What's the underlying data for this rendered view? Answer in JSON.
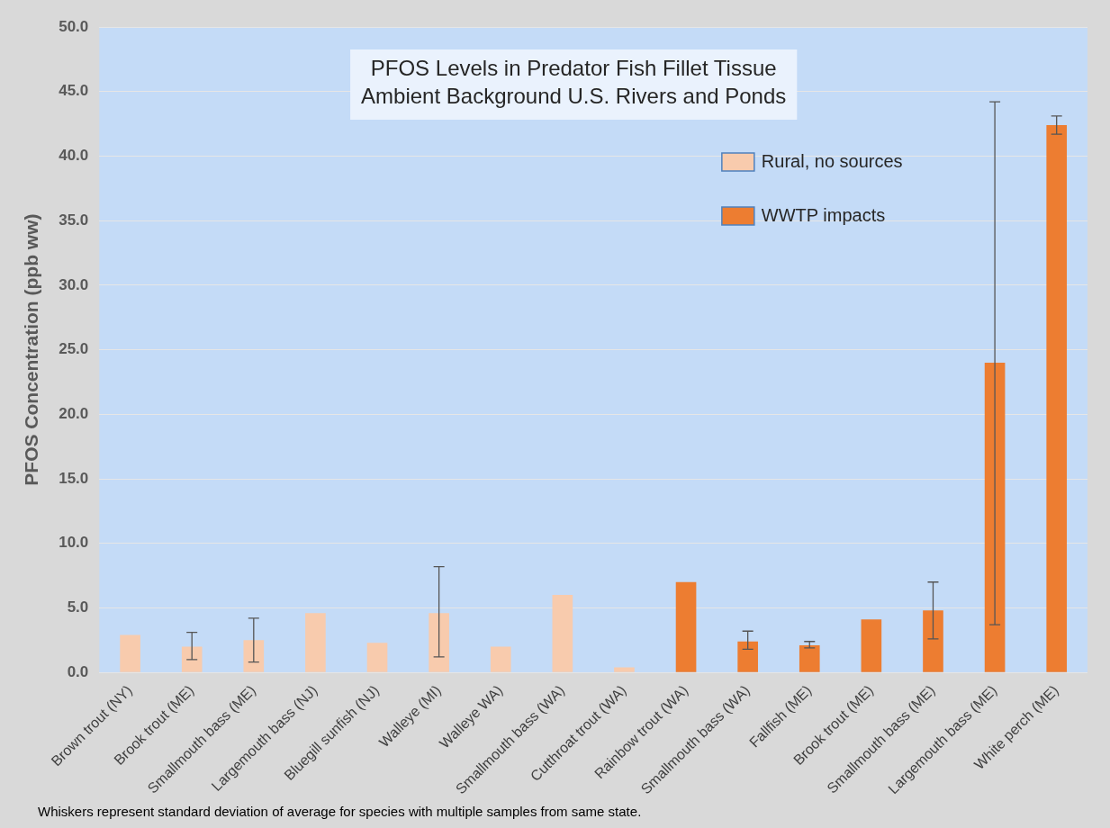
{
  "chart_data": {
    "type": "bar",
    "title": "PFOS Levels in Predator Fish Fillet Tissue",
    "subtitle": "Ambient Background U.S. Rivers and Ponds",
    "ylabel": "PFOS Concentration (ppb ww)",
    "categories": [
      "Brown trout (NY)",
      "Brook trout (ME)",
      "Smallmouth bass (ME)",
      "Largemouth bass (NJ)",
      "Bluegill sunfish (NJ)",
      "Walleye (MI)",
      "Walleye WA)",
      "Smallmouth bass (WA)",
      "Cutthroat trout (WA)",
      "Rainbow trout (WA)",
      "Smallmouth bass (WA)",
      "Fallfish (ME)",
      "Brook trout (ME)",
      "Smallmouth bass (ME)",
      "Largemouth bass (ME)",
      "White perch (ME)"
    ],
    "series": [
      {
        "name": "Rural, no sources",
        "color": "#f8cbad",
        "values": [
          2.9,
          2.0,
          2.5,
          4.6,
          2.3,
          4.6,
          2.0,
          6.0,
          0.4,
          null,
          null,
          null,
          null,
          null,
          null,
          null
        ],
        "errors": [
          null,
          [
            1.0,
            3.1
          ],
          [
            0.8,
            4.2
          ],
          null,
          null,
          [
            1.2,
            8.2
          ],
          null,
          null,
          null,
          null,
          null,
          null,
          null,
          null,
          null,
          null
        ]
      },
      {
        "name": "WWTP impacts",
        "color": "#ed7d31",
        "values": [
          null,
          null,
          null,
          null,
          null,
          null,
          null,
          null,
          null,
          7.0,
          2.4,
          2.1,
          4.1,
          4.8,
          24.0,
          42.4
        ],
        "errors": [
          null,
          null,
          null,
          null,
          null,
          null,
          null,
          null,
          null,
          null,
          [
            1.8,
            3.2
          ],
          [
            1.9,
            2.4
          ],
          null,
          [
            2.6,
            7.0
          ],
          [
            3.7,
            44.2
          ],
          [
            41.7,
            43.1
          ]
        ]
      }
    ],
    "ylim": [
      0,
      50
    ],
    "yticks": [
      {
        "value": 0,
        "label": "0.0"
      },
      {
        "value": 5,
        "label": "5.0"
      },
      {
        "value": 10,
        "label": "10.0"
      },
      {
        "value": 15,
        "label": "15.0"
      },
      {
        "value": 20,
        "label": "20.0"
      },
      {
        "value": 25,
        "label": "25.0"
      },
      {
        "value": 30,
        "label": "30.0"
      },
      {
        "value": 35,
        "label": "35.0"
      },
      {
        "value": 40,
        "label": "40.0"
      },
      {
        "value": 45,
        "label": "45.0"
      },
      {
        "value": 50,
        "label": "50.0"
      }
    ],
    "grid": "y",
    "legend": "top right",
    "annotations": [
      "Whiskers represent standard deviation of average for species with multiple samples  from same state."
    ]
  }
}
